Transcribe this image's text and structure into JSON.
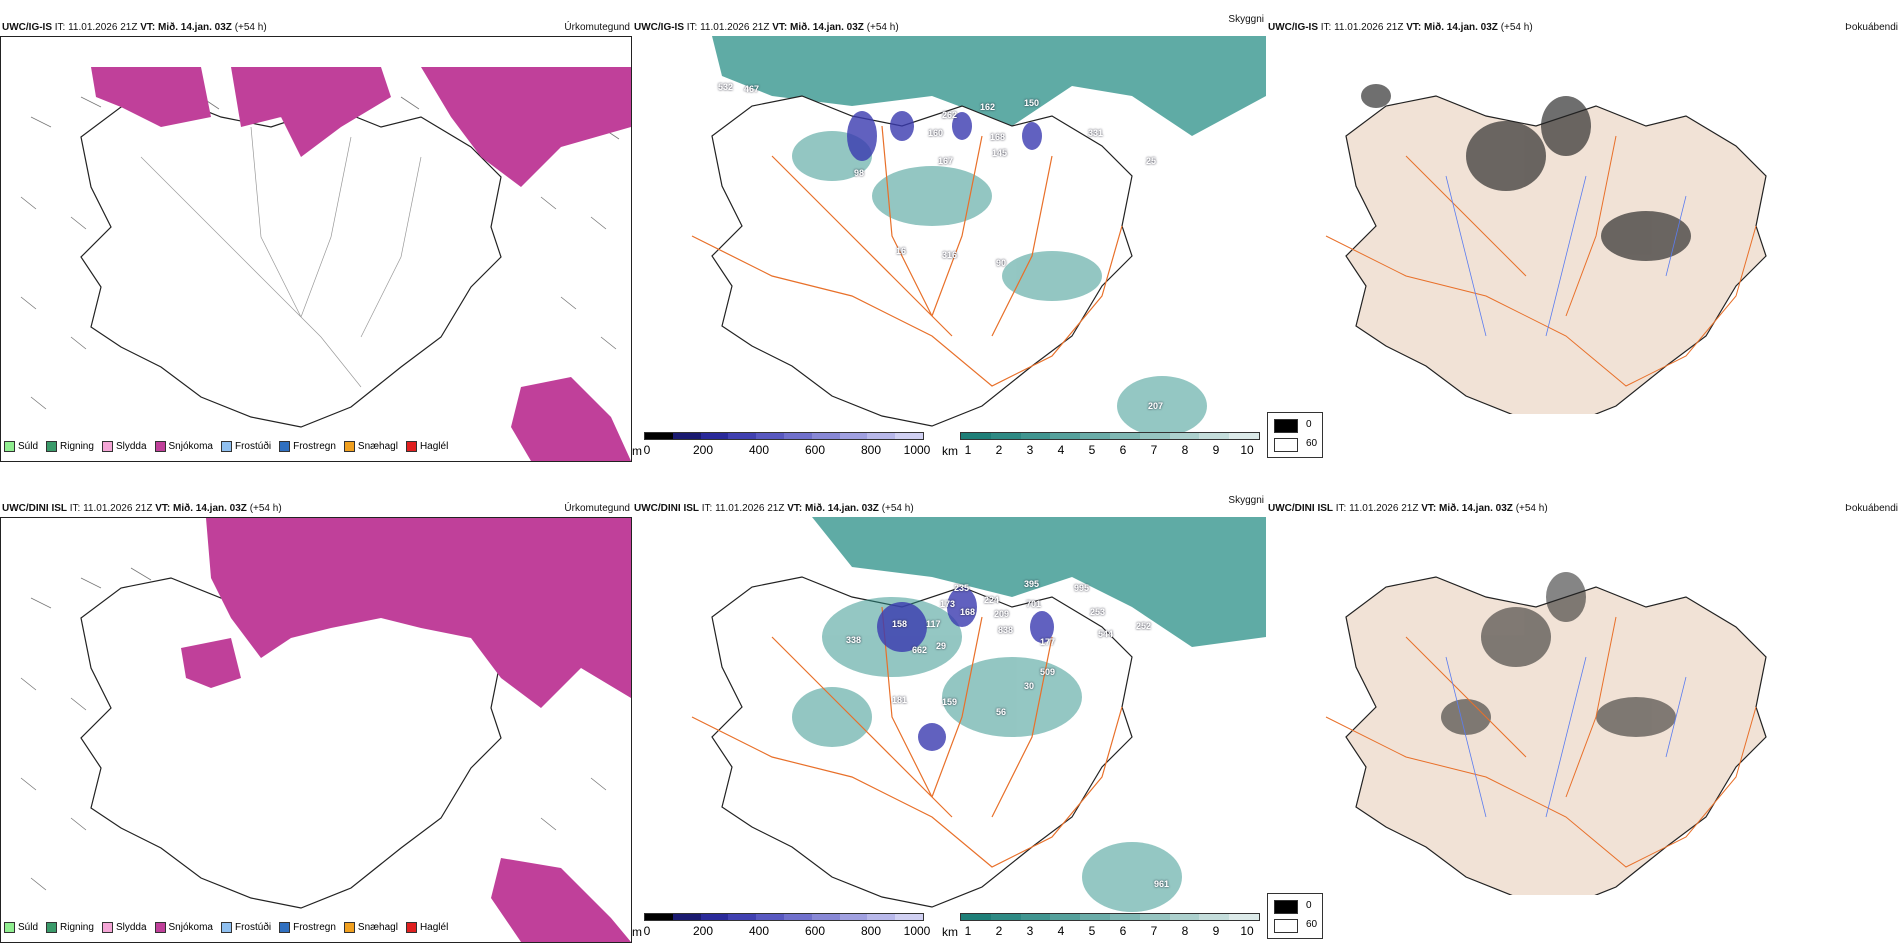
{
  "panels": {
    "top": {
      "precip": {
        "source": "UWC/IG-IS",
        "header_rest": " IT: 11.01.2026 21Z ",
        "vt": "VT: Mið. 14.jan. 03Z",
        "lead": " (+54 h)",
        "label": "Úrkomutegund"
      },
      "cloud": {
        "source": "UWC/IG-IS",
        "header_rest": " IT: 11.01.2026 21Z ",
        "vt": "VT: Mið. 14.jan. 03Z",
        "lead": " (+54 h)",
        "label": "Skyggni"
      },
      "fog": {
        "source": "UWC/IG-IS",
        "header_rest": " IT: 11.01.2026 21Z ",
        "vt": "VT: Mið. 14.jan. 03Z",
        "lead": " (+54 h)",
        "label": "Þokuábendi"
      }
    },
    "bottom": {
      "precip": {
        "source": "UWC/DINI ISL",
        "header_rest": " IT: 11.01.2026 21Z ",
        "vt": "VT: Mið. 14.jan. 03Z",
        "lead": " (+54 h)",
        "label": "Úrkomutegund"
      },
      "cloud": {
        "source": "UWC/DINI ISL",
        "header_rest": " IT: 11.01.2026 21Z ",
        "vt": "VT: Mið. 14.jan. 03Z",
        "lead": " (+54 h)",
        "label": "Skyggni"
      },
      "fog": {
        "source": "UWC/DINI ISL",
        "header_rest": " IT: 11.01.2026 21Z ",
        "vt": "VT: Mið. 14.jan. 03Z",
        "lead": " (+54 h)",
        "label": "Þokuábendi"
      }
    }
  },
  "precip_legend": [
    {
      "label": "Súld",
      "color": "#90ee90"
    },
    {
      "label": "Rigning",
      "color": "#3a9a6a"
    },
    {
      "label": "Slydda",
      "color": "#f4a6d6"
    },
    {
      "label": "Snjókoma",
      "color": "#c0409a"
    },
    {
      "label": "Frostúði",
      "color": "#90c0f0"
    },
    {
      "label": "Frostregn",
      "color": "#3070c0"
    },
    {
      "label": "Snæhagl",
      "color": "#f0a020"
    },
    {
      "label": "Haglél",
      "color": "#e02020"
    }
  ],
  "cloudbase_bar": {
    "unit": "m",
    "ticks": [
      "0",
      "200",
      "400",
      "600",
      "800",
      "1000"
    ],
    "colors": [
      "#000000",
      "#1a1a70",
      "#2a2a9a",
      "#4040b0",
      "#5858c0",
      "#7070cc",
      "#8888d6",
      "#a0a0e0",
      "#b8b8ea",
      "#d0d0f2"
    ]
  },
  "visibility_bar": {
    "unit": "km",
    "ticks": [
      "1",
      "2",
      "3",
      "4",
      "5",
      "6",
      "7",
      "8",
      "9",
      "10"
    ],
    "colors": [
      "#1e7f78",
      "#2e8a84",
      "#409590",
      "#55a19c",
      "#6aaca8",
      "#80b8b4",
      "#96c4c0",
      "#acd0cd",
      "#c4dddb",
      "#dceae9"
    ]
  },
  "fog_legend": {
    "values": [
      "0",
      "60"
    ]
  },
  "elev_labels_top": [
    "532",
    "467",
    "262",
    "162",
    "150",
    "160",
    "168",
    "145",
    "167",
    "331",
    "25",
    "98",
    "316",
    "16",
    "90",
    "207"
  ],
  "elev_labels_bottom": [
    "235",
    "395",
    "995",
    "224",
    "701",
    "253",
    "173",
    "168",
    "209",
    "838",
    "544",
    "252",
    "158",
    "117",
    "338",
    "662",
    "29",
    "177",
    "509",
    "30",
    "181",
    "159",
    "56",
    "961"
  ],
  "colors": {
    "snow": "#c0409a",
    "teal": "#2a8f87",
    "land_fog": "#f1e2d6",
    "roads": "#e8702a",
    "rivers": "#5b7cf0"
  }
}
